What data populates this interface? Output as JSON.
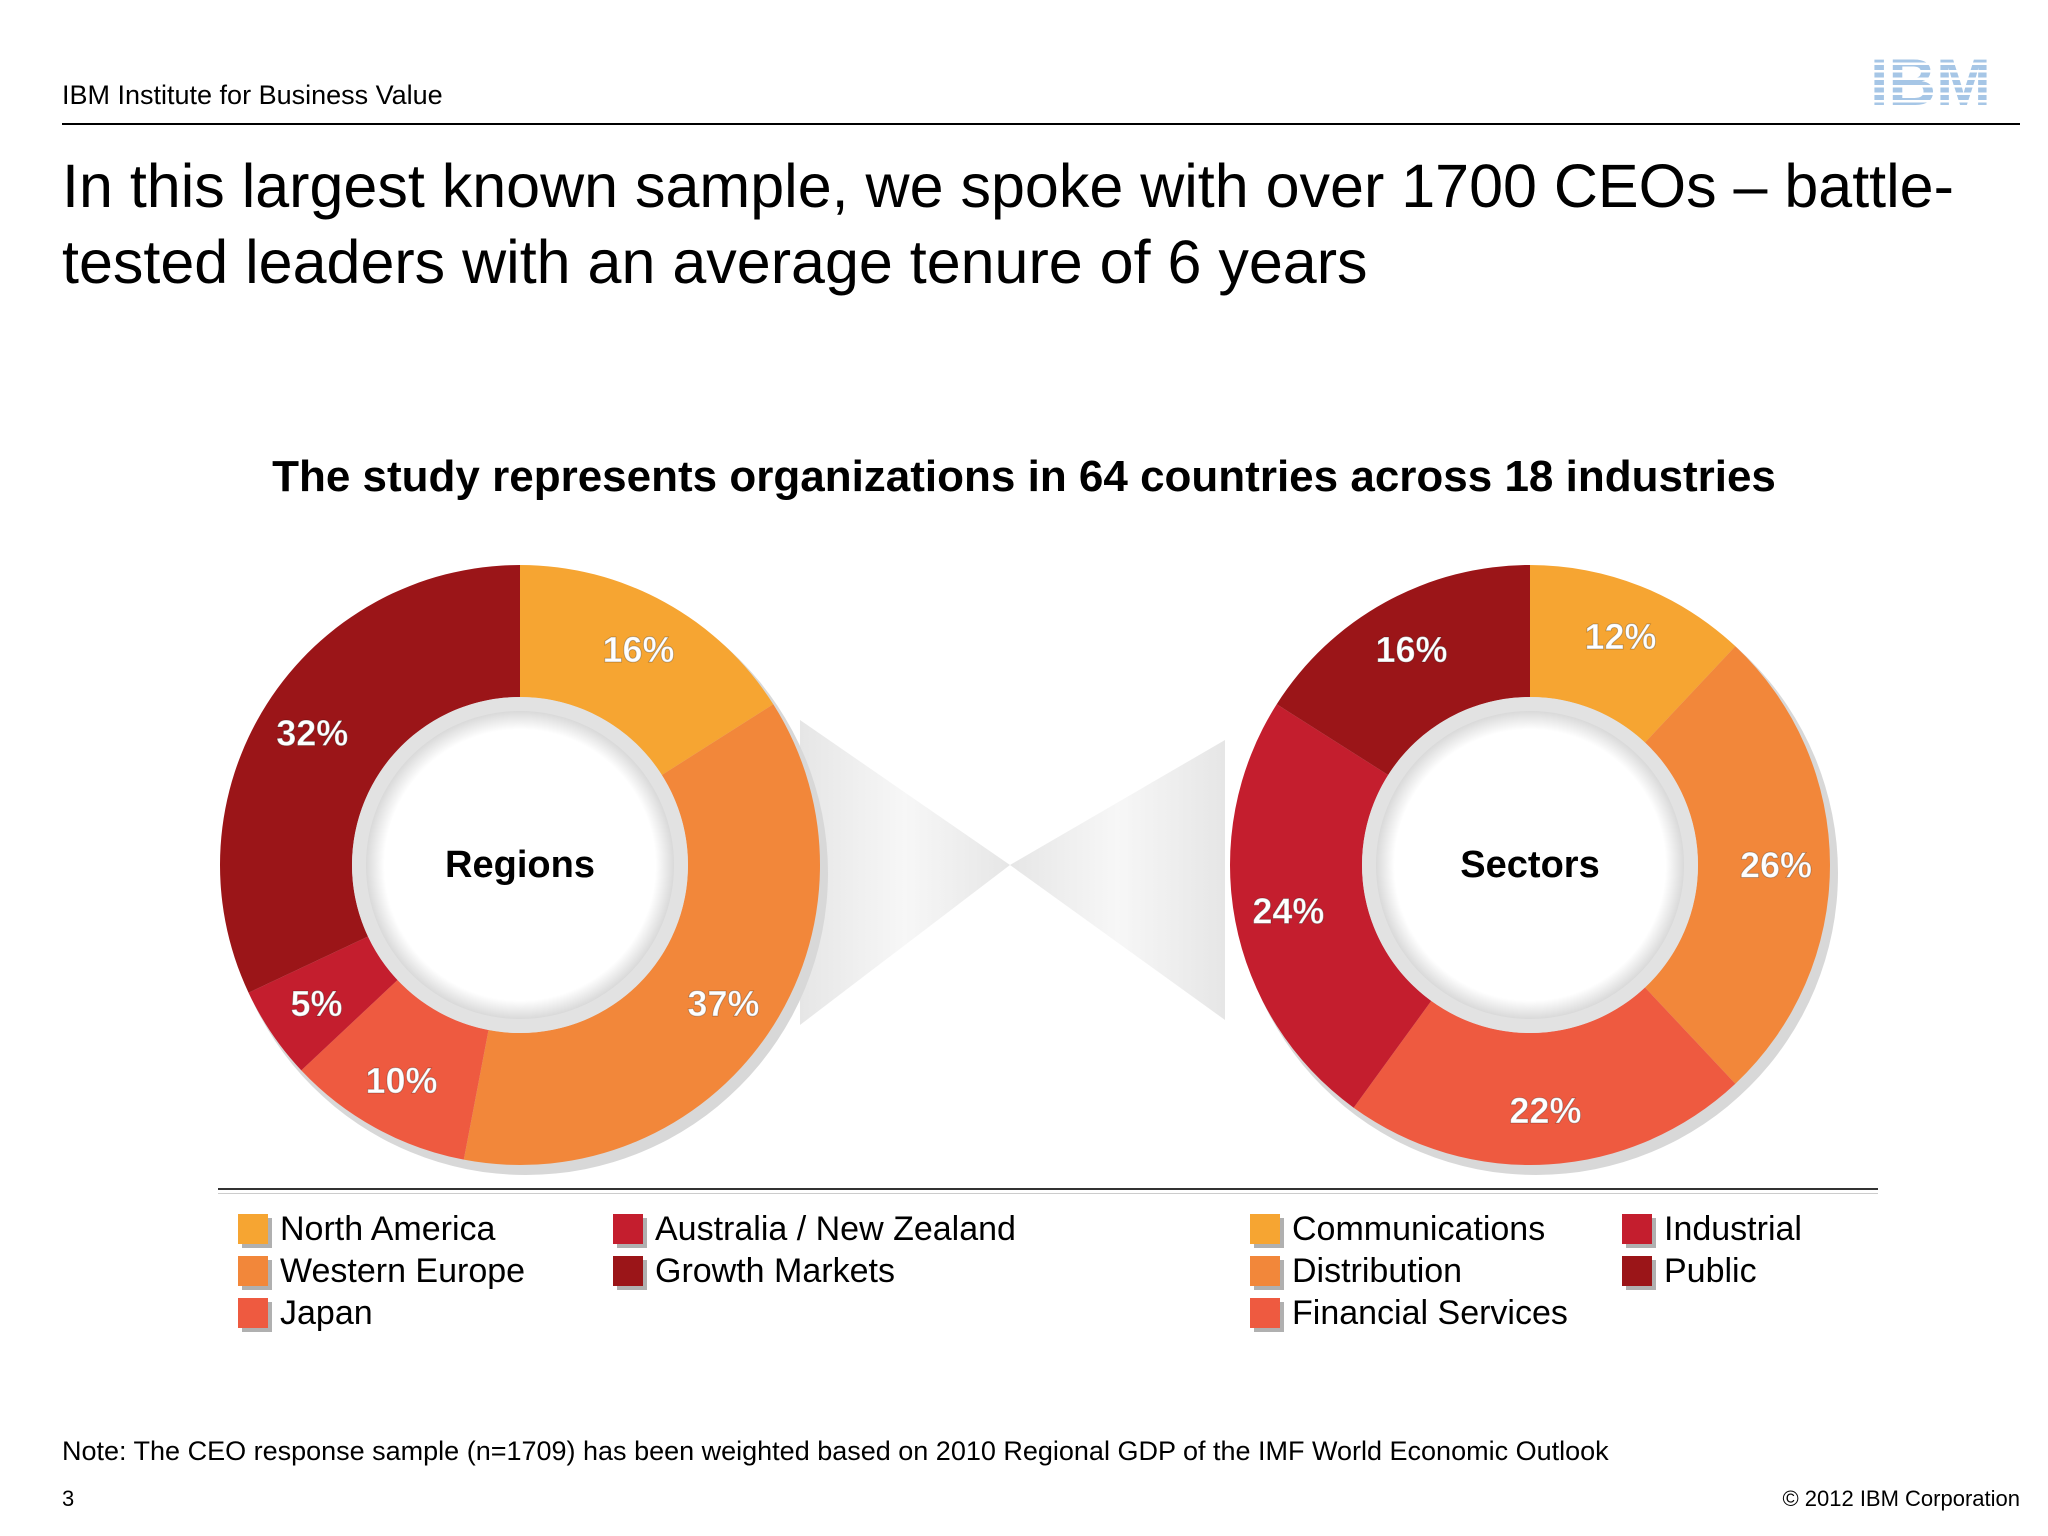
{
  "header": {
    "org": "IBM Institute for Business Value",
    "logo_text": "IBM"
  },
  "title": "In this largest known sample, we spoke with over 1700 CEOs – battle-tested leaders with an average tenure of 6 years",
  "subtitle": "The study represents organizations in 64 countries across 18 industries",
  "chart_data": [
    {
      "type": "pie",
      "center_label": "Regions",
      "categories": [
        "North America",
        "Western Europe",
        "Japan",
        "Australia / New Zealand",
        "Growth Markets"
      ],
      "values": [
        16,
        37,
        10,
        5,
        32
      ],
      "data_labels": [
        "16%",
        "37%",
        "10%",
        "5%",
        "32%"
      ],
      "colors": [
        "#f6a532",
        "#f2873a",
        "#ee5a40",
        "#c41e2e",
        "#9b1518"
      ],
      "donut": true,
      "legend_placement": "bottom"
    },
    {
      "type": "pie",
      "center_label": "Sectors",
      "categories": [
        "Communications",
        "Distribution",
        "Financial Services",
        "Industrial",
        "Public"
      ],
      "values": [
        12,
        26,
        22,
        24,
        16
      ],
      "data_labels": [
        "12%",
        "26%",
        "22%",
        "24%",
        "16%"
      ],
      "colors": [
        "#f6a532",
        "#f2873a",
        "#ee5a40",
        "#c41e2e",
        "#9b1518"
      ],
      "donut": true,
      "legend_placement": "bottom"
    }
  ],
  "note": "Note: The CEO response sample (n=1709) has been weighted based on 2010 Regional GDP of the IMF World Economic Outlook",
  "footer": {
    "page_number": "3",
    "copyright": "© 2012 IBM Corporation"
  }
}
